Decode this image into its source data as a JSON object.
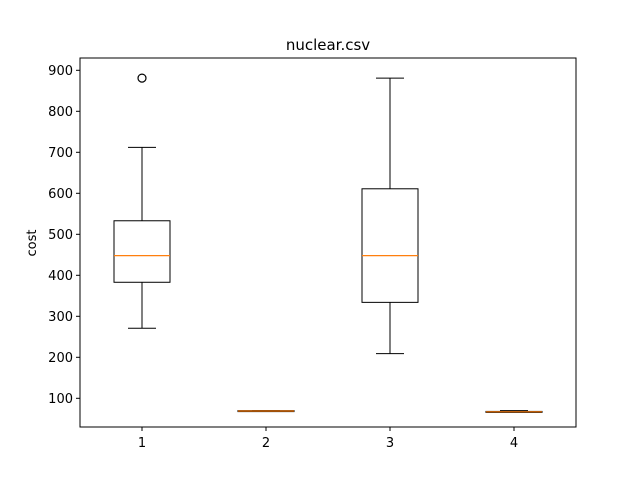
{
  "chart_data": {
    "type": "boxplot",
    "title": "nuclear.csv",
    "xlabel": "",
    "ylabel": "cost",
    "categories": [
      "1",
      "2",
      "3",
      "4"
    ],
    "ylim": [
      30,
      930
    ],
    "yticks": [
      100,
      200,
      300,
      400,
      500,
      600,
      700,
      800,
      900
    ],
    "grid": false,
    "boxes": [
      {
        "label": "1",
        "whisker_low": 271,
        "q1": 383,
        "median": 448,
        "q3": 533,
        "whisker_high": 712,
        "outliers": [
          881
        ]
      },
      {
        "label": "2",
        "whisker_low": 68,
        "q1": 68,
        "median": 69,
        "q3": 70,
        "whisker_high": 70,
        "outliers": []
      },
      {
        "label": "3",
        "whisker_low": 209,
        "q1": 334,
        "median": 448,
        "q3": 611,
        "whisker_high": 881,
        "outliers": []
      },
      {
        "label": "4",
        "whisker_low": 67,
        "q1": 67,
        "median": 67,
        "q3": 68,
        "whisker_high": 70,
        "outliers": []
      }
    ],
    "colors": {
      "box": "#000000",
      "median": "#ff7f0e",
      "outlier": "#000000"
    }
  }
}
